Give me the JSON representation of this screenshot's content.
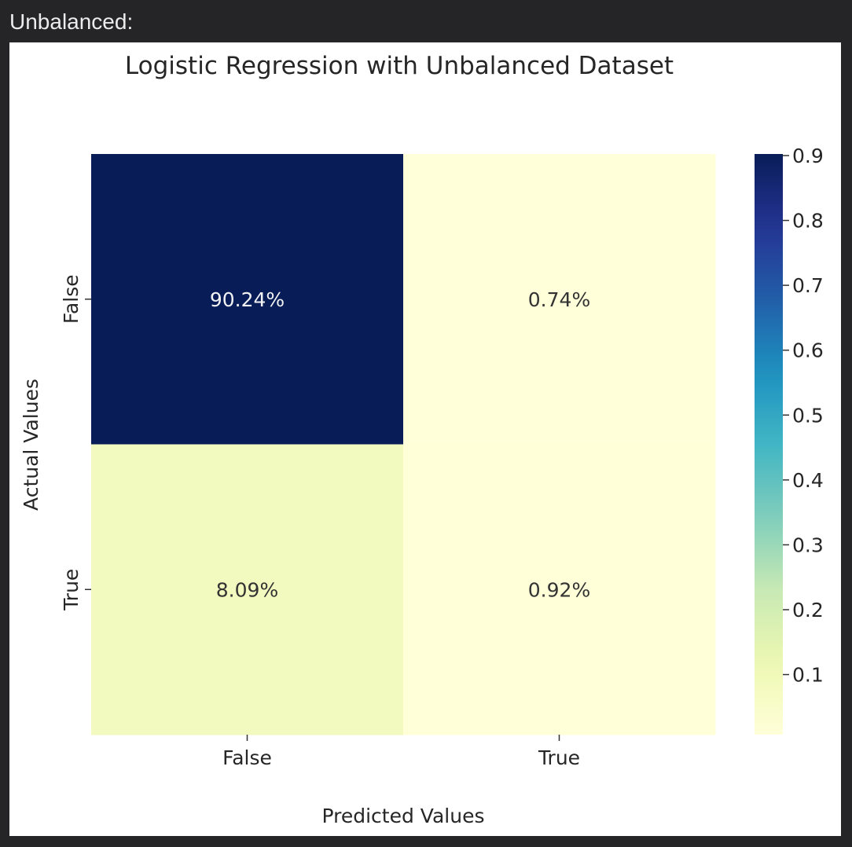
{
  "page_heading": "Unbalanced:",
  "chart_data": {
    "type": "heatmap",
    "title": "Logistic Regression with Unbalanced Dataset",
    "xlabel": "Predicted Values",
    "ylabel": "Actual Values",
    "x_categories": [
      "False",
      "True"
    ],
    "y_categories": [
      "False",
      "True"
    ],
    "values": [
      [
        0.9024,
        0.0074
      ],
      [
        0.0809,
        0.0092
      ]
    ],
    "annotations": [
      [
        "90.24%",
        "0.74%"
      ],
      [
        "8.09%",
        "0.92%"
      ]
    ],
    "colormap": "YlGnBu",
    "colorbar": {
      "vmin": 0.0074,
      "vmax": 0.9024,
      "ticks": [
        0.1,
        0.2,
        0.3,
        0.4,
        0.5,
        0.6,
        0.7,
        0.8,
        0.9
      ],
      "tick_labels": [
        "0.1",
        "0.2",
        "0.3",
        "0.4",
        "0.5",
        "0.6",
        "0.7",
        "0.8",
        "0.9"
      ]
    },
    "grid": false,
    "legend": "colorbar-right"
  }
}
